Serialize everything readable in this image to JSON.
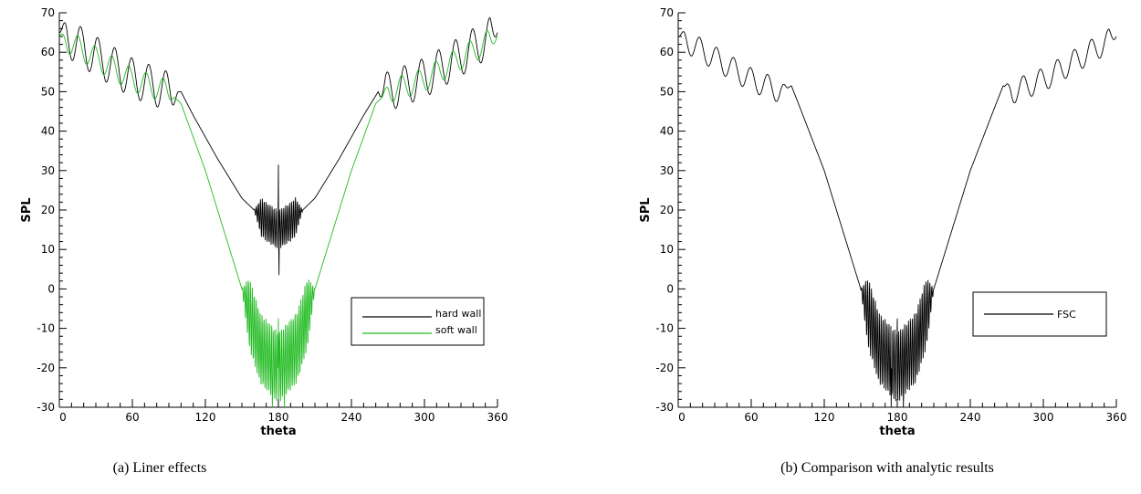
{
  "chart_data": [
    {
      "type": "line",
      "caption": "(a)   Liner effects",
      "xlabel": "theta",
      "ylabel": "SPL",
      "xlim": [
        0,
        360
      ],
      "ylim": [
        -30,
        70
      ],
      "xticks": [
        0,
        60,
        120,
        180,
        240,
        300,
        360
      ],
      "yticks": [
        -30,
        -20,
        -10,
        0,
        10,
        20,
        30,
        40,
        50,
        60,
        70
      ],
      "legend_position": "lower-right",
      "series": [
        {
          "name": "hard wall",
          "color": "#000000",
          "envelope": [
            [
              0,
              65
            ],
            [
              30,
              59
            ],
            [
              60,
              53.5
            ],
            [
              90,
              50
            ],
            [
              100,
              50
            ],
            [
              110,
              44
            ],
            [
              130,
              33
            ],
            [
              150,
              23
            ],
            [
              170,
              17
            ],
            [
              180,
              15
            ],
            [
              190,
              17
            ],
            [
              210,
              23
            ],
            [
              230,
              33
            ],
            [
              250,
              44
            ],
            [
              262,
              50
            ],
            [
              270,
              50
            ],
            [
              300,
              53.5
            ],
            [
              330,
              59
            ],
            [
              360,
              65
            ]
          ],
          "oscillation_ranges": [
            [
              0,
              98,
              5,
              14
            ],
            [
              262,
              360,
              5,
              14
            ],
            [
              160,
              200,
              5,
              1.6
            ]
          ],
          "peaks": [
            [
              180,
              31.5
            ],
            [
              180.5,
              3.5
            ]
          ]
        },
        {
          "name": "soft wall",
          "color": "#22bb22",
          "envelope": [
            [
              0,
              64
            ],
            [
              30,
              58.5
            ],
            [
              60,
              53
            ],
            [
              90,
              50
            ],
            [
              100,
              47
            ],
            [
              120,
              30
            ],
            [
              140,
              10
            ],
            [
              155,
              -5
            ],
            [
              165,
              -15
            ],
            [
              180,
              -20
            ],
            [
              195,
              -15
            ],
            [
              205,
              -5
            ],
            [
              220,
              10
            ],
            [
              240,
              30
            ],
            [
              260,
              47
            ],
            [
              270,
              50
            ],
            [
              300,
              53
            ],
            [
              330,
              58.5
            ],
            [
              360,
              64
            ]
          ],
          "oscillation_ranges": [
            [
              0,
              95,
              3,
              14
            ],
            [
              265,
              360,
              3,
              14
            ],
            [
              150,
              210,
              9,
              1.6
            ]
          ],
          "peaks": [
            [
              175,
              -30
            ],
            [
              180,
              -7.5
            ],
            [
              185,
              -30
            ]
          ]
        }
      ]
    },
    {
      "type": "line",
      "caption": "(b) Comparison with analytic results",
      "xlabel": "theta",
      "ylabel": "SPL",
      "xlim": [
        0,
        360
      ],
      "ylim": [
        -30,
        70
      ],
      "xticks": [
        0,
        60,
        120,
        180,
        240,
        300,
        360
      ],
      "yticks": [
        -30,
        -20,
        -10,
        0,
        10,
        20,
        30,
        40,
        50,
        60,
        70
      ],
      "legend_position": "lower-right",
      "series": [
        {
          "name": "FSC",
          "color": "#000000",
          "envelope": [
            [
              0,
              64
            ],
            [
              30,
              58.5
            ],
            [
              60,
              53
            ],
            [
              85,
              50
            ],
            [
              93,
              51.5
            ],
            [
              100,
              46
            ],
            [
              120,
              30
            ],
            [
              140,
              10
            ],
            [
              155,
              -5
            ],
            [
              165,
              -15
            ],
            [
              180,
              -20
            ],
            [
              195,
              -15
            ],
            [
              205,
              -5
            ],
            [
              220,
              10
            ],
            [
              240,
              30
            ],
            [
              260,
              46
            ],
            [
              267,
              51.5
            ],
            [
              275,
              50
            ],
            [
              300,
              53
            ],
            [
              330,
              58.5
            ],
            [
              360,
              64
            ]
          ],
          "oscillation_ranges": [
            [
              0,
              90,
              3,
              14
            ],
            [
              268,
              360,
              3,
              14
            ],
            [
              150,
              210,
              9,
              1.6
            ]
          ],
          "peaks": [
            [
              175,
              -30
            ],
            [
              180,
              -7.5
            ],
            [
              185,
              -30
            ]
          ]
        }
      ]
    }
  ]
}
